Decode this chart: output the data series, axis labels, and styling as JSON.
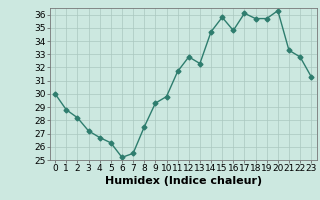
{
  "x": [
    0,
    1,
    2,
    3,
    4,
    5,
    6,
    7,
    8,
    9,
    10,
    11,
    12,
    13,
    14,
    15,
    16,
    17,
    18,
    19,
    20,
    21,
    22,
    23
  ],
  "y": [
    30,
    28.8,
    28.2,
    27.2,
    26.7,
    26.3,
    25.2,
    25.5,
    27.5,
    29.3,
    29.8,
    31.7,
    32.8,
    32.3,
    34.7,
    35.8,
    34.8,
    36.1,
    35.7,
    35.7,
    36.3,
    33.3,
    32.8,
    31.3
  ],
  "title": "",
  "xlabel": "Humidex (Indice chaleur)",
  "ylabel": "",
  "xlim": [
    -0.5,
    23.5
  ],
  "ylim": [
    25,
    36.5
  ],
  "yticks": [
    25,
    26,
    27,
    28,
    29,
    30,
    31,
    32,
    33,
    34,
    35,
    36
  ],
  "xticks": [
    0,
    1,
    2,
    3,
    4,
    5,
    6,
    7,
    8,
    9,
    10,
    11,
    12,
    13,
    14,
    15,
    16,
    17,
    18,
    19,
    20,
    21,
    22,
    23
  ],
  "line_color": "#2e7d6e",
  "marker": "D",
  "marker_size": 2.5,
  "bg_color": "#cce8e0",
  "grid_color": "#aac8c0",
  "xlabel_fontsize": 8,
  "tick_fontsize": 6.5,
  "line_width": 1.0
}
